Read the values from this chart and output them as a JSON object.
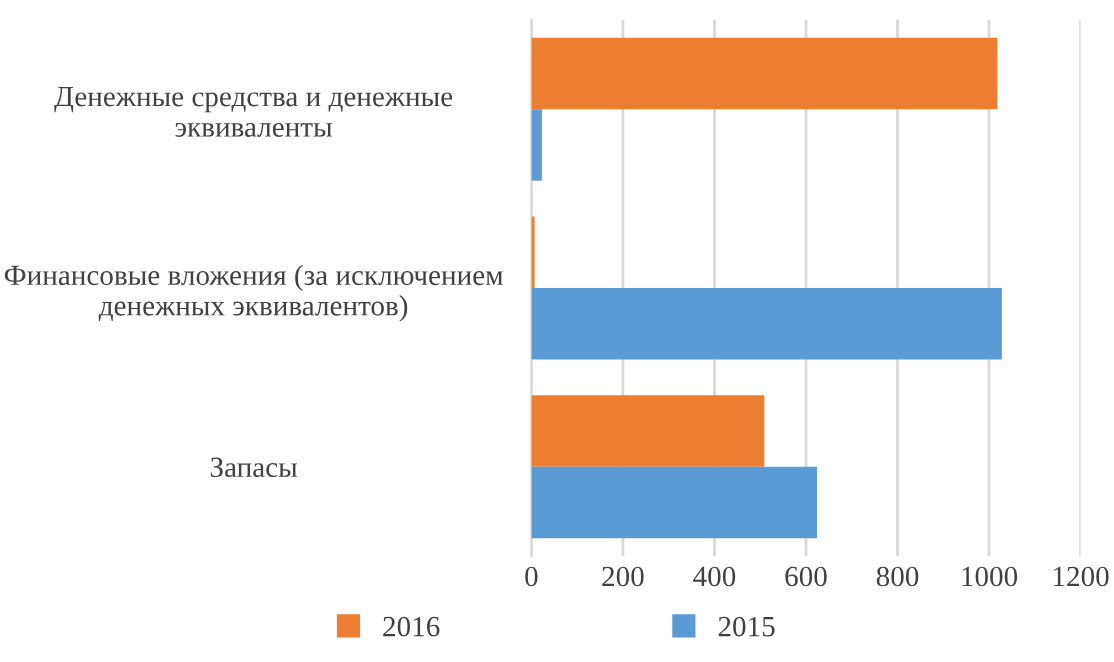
{
  "chart_data": {
    "type": "bar",
    "orientation": "horizontal",
    "categories": [
      "Денежные средства и денежные\nэквиваленты",
      "Финансовые вложения (за исключением\nденежных эквивалентов)",
      "Запасы"
    ],
    "series": [
      {
        "name": "2016",
        "color": "#ed7d31",
        "values": [
          1018,
          7,
          509
        ]
      },
      {
        "name": "2015",
        "color": "#5b9bd5",
        "values": [
          23,
          1028,
          624
        ]
      }
    ],
    "xlim": [
      0,
      1200
    ],
    "xticks": [
      0,
      200,
      400,
      600,
      800,
      1000,
      1200
    ],
    "grid": "x",
    "legend": "bottom"
  }
}
